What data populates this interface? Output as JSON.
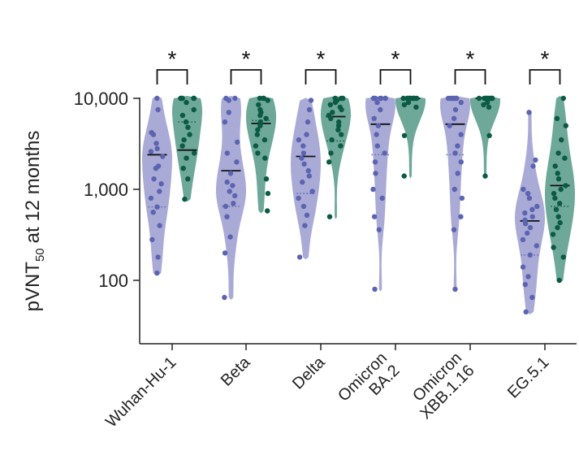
{
  "chart_data": {
    "type": "violin",
    "title": "",
    "xlabel": "",
    "ylabel": "pVNT",
    "ylabel_subscript": "50",
    "ylabel_suffix": "at 12 months",
    "yscale": "log",
    "ylim": [
      20,
      10000
    ],
    "yticks": [
      {
        "value": 100,
        "label": "100"
      },
      {
        "value": 1000,
        "label": "1,000"
      },
      {
        "value": 10000,
        "label": "10,000"
      }
    ],
    "categories": [
      {
        "lines": [
          "Wuhan-Hu-1"
        ]
      },
      {
        "lines": [
          "Beta"
        ]
      },
      {
        "lines": [
          "Delta"
        ]
      },
      {
        "lines": [
          "Omicron",
          "BA.2"
        ]
      },
      {
        "lines": [
          "Omicron",
          "XBB.1.16"
        ]
      },
      {
        "lines": [
          "EG.5.1"
        ]
      }
    ],
    "significance_marker": "*",
    "colors": {
      "group1_fill": "#aaaad6",
      "group1_point": "#5b64b0",
      "group2_fill": "#6ea899",
      "group2_point": "#0b5a43"
    },
    "series": [
      {
        "group": 1,
        "medians": [
          2400,
          1600,
          2300,
          5200,
          5200,
          450
        ],
        "means": [
          640,
          650,
          900,
          2400,
          2400,
          190
        ],
        "points": [
          [
            10000,
            7500,
            4200,
            4000,
            3200,
            2800,
            2600,
            2300,
            1800,
            1700,
            1300,
            1150,
            950,
            800,
            640,
            560,
            400,
            280,
            180,
            120
          ],
          [
            10000,
            10000,
            9500,
            7000,
            5500,
            3300,
            2500,
            2000,
            1500,
            1200,
            1100,
            950,
            850,
            700,
            650,
            500,
            300,
            200,
            65
          ],
          [
            9500,
            7500,
            5500,
            4000,
            3500,
            3000,
            2500,
            2200,
            1900,
            1600,
            1400,
            1200,
            950,
            800,
            650,
            520,
            400,
            180
          ],
          [
            10000,
            10000,
            10000,
            10000,
            10000,
            10000,
            10000,
            9000,
            7500,
            6000,
            5000,
            4000,
            3000,
            2500,
            2000,
            1500,
            1000,
            800,
            500,
            360,
            80
          ],
          [
            10000,
            10000,
            10000,
            10000,
            10000,
            10000,
            10000,
            9000,
            7500,
            6000,
            5000,
            4000,
            3000,
            2500,
            2000,
            1500,
            1000,
            800,
            500,
            360,
            80
          ],
          [
            7000,
            2100,
            1800,
            1000,
            900,
            800,
            650,
            600,
            550,
            500,
            460,
            420,
            380,
            330,
            280,
            240,
            190,
            140,
            110,
            90,
            65,
            45
          ]
        ]
      },
      {
        "group": 2,
        "medians": [
          2700,
          5300,
          6300,
          10000,
          10000,
          1100
        ],
        "means": [
          5500,
          5700,
          3400,
          10000,
          10000,
          650
        ],
        "points": [
          [
            10000,
            10000,
            10000,
            10000,
            10000,
            9000,
            7500,
            6500,
            5500,
            4800,
            4000,
            3500,
            3000,
            2500,
            2200,
            1700,
            1300,
            780
          ],
          [
            10000,
            10000,
            10000,
            9500,
            8500,
            7500,
            7000,
            6500,
            6000,
            5500,
            5000,
            4500,
            4000,
            3500,
            3000,
            2500,
            2200,
            1300,
            900,
            580
          ],
          [
            10000,
            10000,
            10000,
            9500,
            9000,
            8500,
            8000,
            7500,
            7000,
            6500,
            6000,
            5500,
            5000,
            4500,
            4000,
            3500,
            3000,
            2500,
            2000,
            500
          ],
          [
            10000,
            10000,
            10000,
            10000,
            10000,
            10000,
            10000,
            10000,
            10000,
            10000,
            10000,
            9000,
            8500,
            8000,
            3900,
            1400
          ],
          [
            10000,
            10000,
            10000,
            10000,
            10000,
            10000,
            10000,
            10000,
            10000,
            10000,
            10000,
            9000,
            8500,
            8000,
            3900,
            1400
          ],
          [
            10000,
            6000,
            5000,
            3500,
            2500,
            2200,
            1800,
            1500,
            1300,
            1100,
            1000,
            900,
            800,
            700,
            600,
            500,
            430,
            380,
            320,
            230,
            180,
            100
          ]
        ]
      }
    ]
  }
}
